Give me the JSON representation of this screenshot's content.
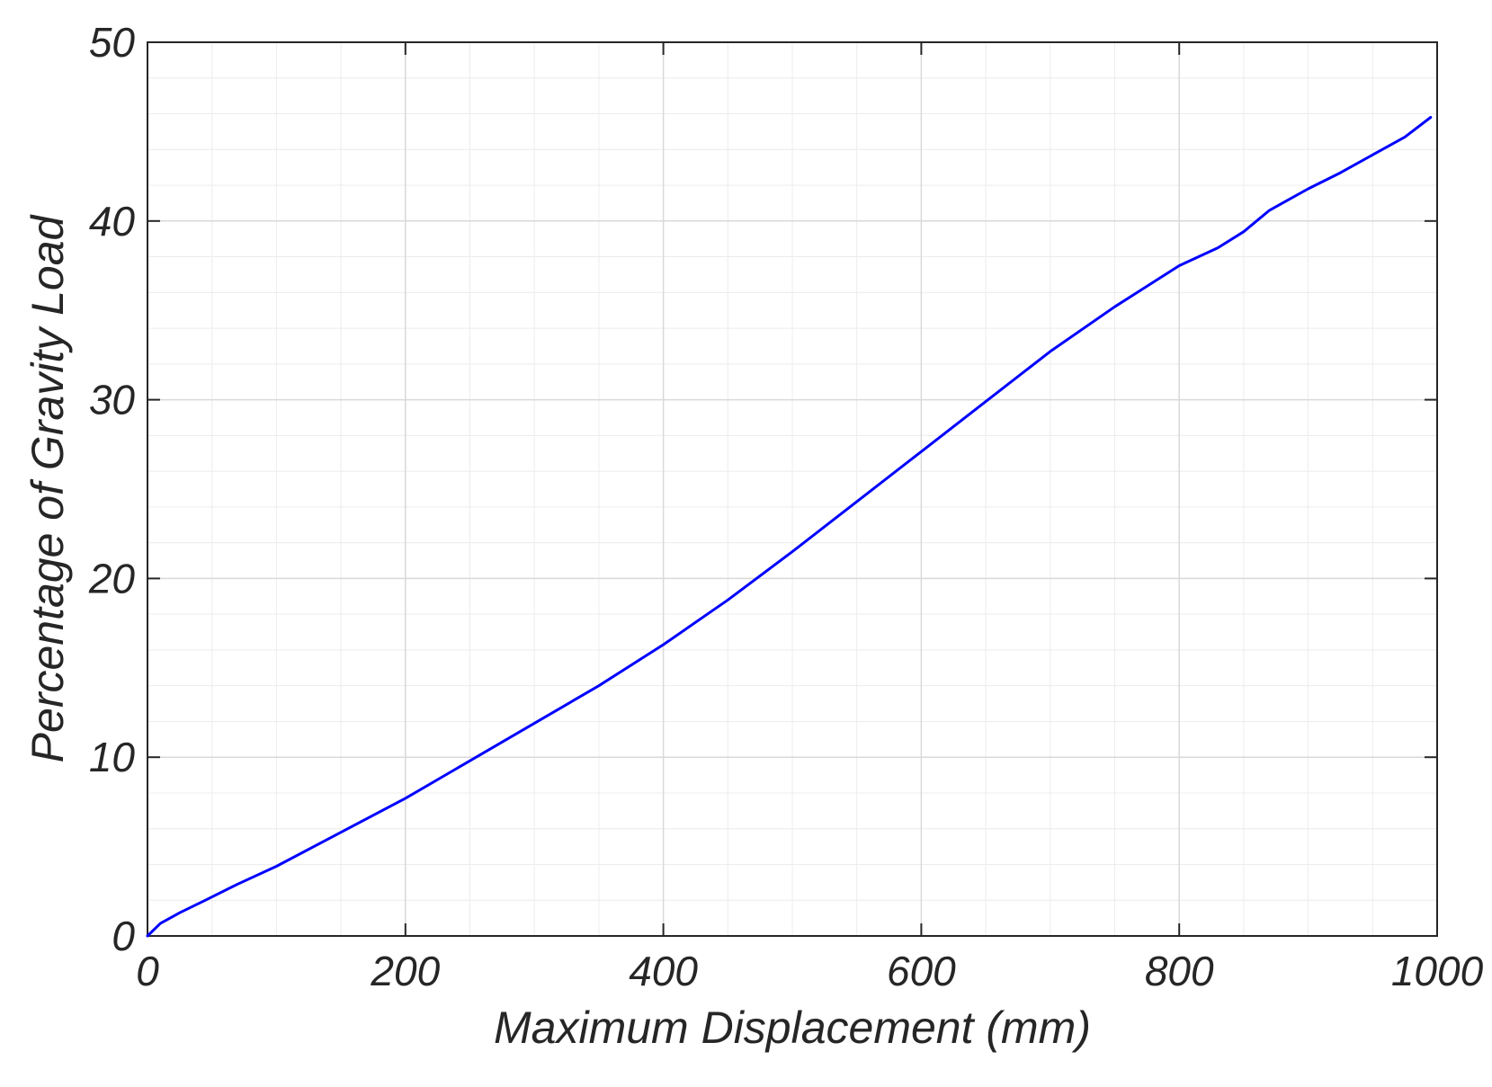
{
  "chart_data": {
    "type": "line",
    "title": "",
    "xlabel": "Maximum Displacement (mm)",
    "ylabel": "Percentage of Gravity Load",
    "xlim": [
      0,
      1000
    ],
    "ylim": [
      0,
      50
    ],
    "x_ticks": [
      0,
      200,
      400,
      600,
      800,
      1000
    ],
    "y_ticks": [
      0,
      10,
      20,
      30,
      40,
      50
    ],
    "x_tick_labels": [
      "0",
      "200",
      "400",
      "600",
      "800",
      "1000"
    ],
    "y_tick_labels": [
      "0",
      "10",
      "20",
      "30",
      "40",
      "50"
    ],
    "grid": true,
    "minor_grid": true,
    "legend": "none",
    "series": [
      {
        "color": "#0000ff",
        "x": [
          0,
          10,
          25,
          45,
          70,
          100,
          150,
          200,
          250,
          300,
          350,
          400,
          450,
          500,
          550,
          600,
          650,
          700,
          750,
          800,
          830,
          850,
          860,
          870,
          880,
          900,
          925,
          950,
          975,
          995
        ],
        "y": [
          0,
          0.7,
          1.3,
          2.0,
          2.9,
          3.9,
          5.8,
          7.7,
          9.8,
          11.9,
          14.0,
          16.3,
          18.8,
          21.5,
          24.3,
          27.1,
          29.9,
          32.7,
          35.2,
          37.5,
          38.5,
          39.4,
          40.0,
          40.6,
          41.0,
          41.8,
          42.7,
          43.7,
          44.7,
          45.8
        ]
      }
    ]
  }
}
